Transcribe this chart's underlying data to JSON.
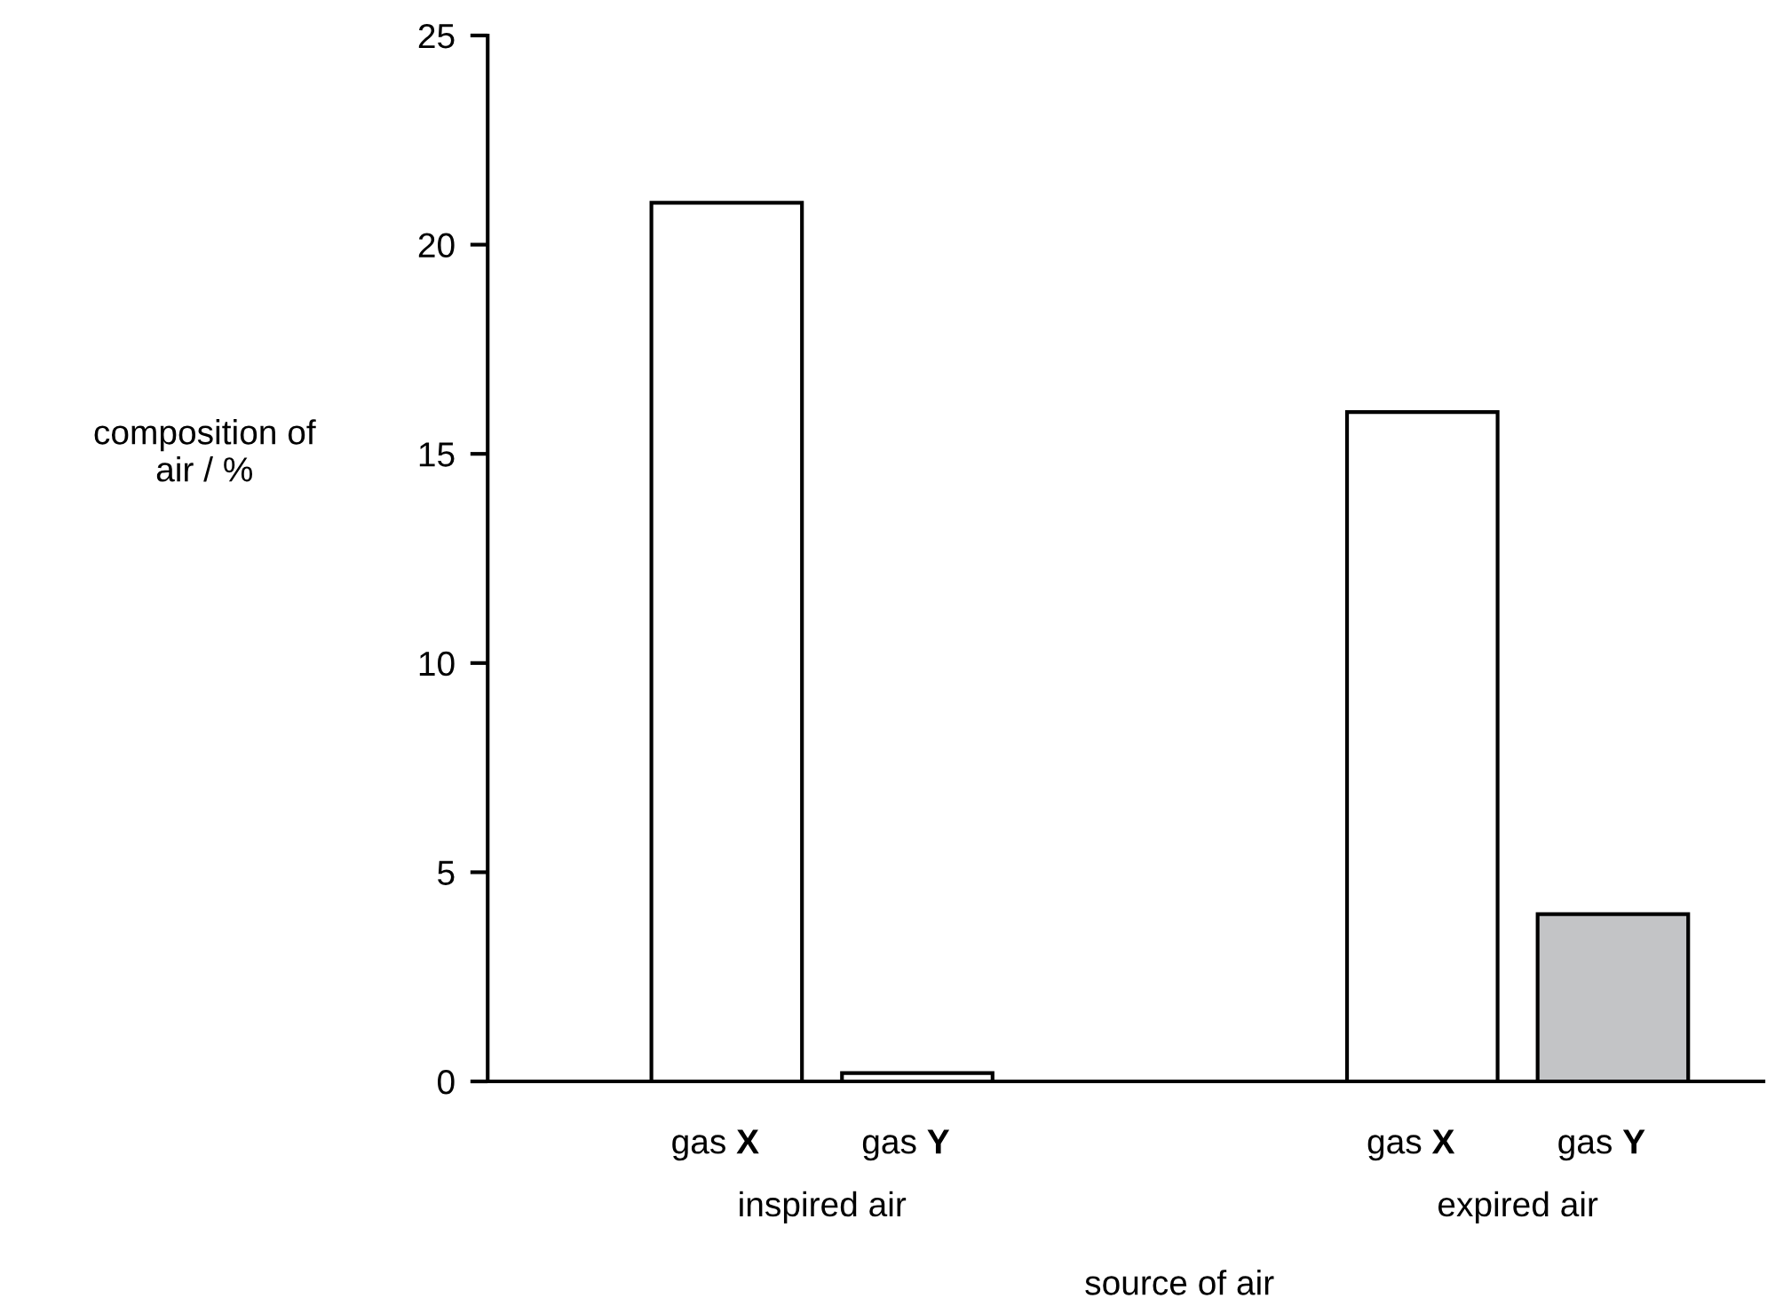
{
  "chart_data": {
    "type": "bar",
    "categories": [
      "gas X",
      "gas Y",
      "gas X",
      "gas Y"
    ],
    "values": [
      21,
      0.2,
      16,
      4
    ],
    "colors": [
      "#ffffff",
      "#ffffff",
      "#ffffff",
      "#c3c4c6"
    ],
    "ylim": [
      0,
      25
    ],
    "yticks": [
      0,
      5,
      10,
      15,
      20,
      25
    ],
    "ylabel": "composition of\nair / %",
    "xlabel": "source of air",
    "annotations": [
      "inspired air",
      "expired air"
    ],
    "grid": false,
    "legend": false
  }
}
